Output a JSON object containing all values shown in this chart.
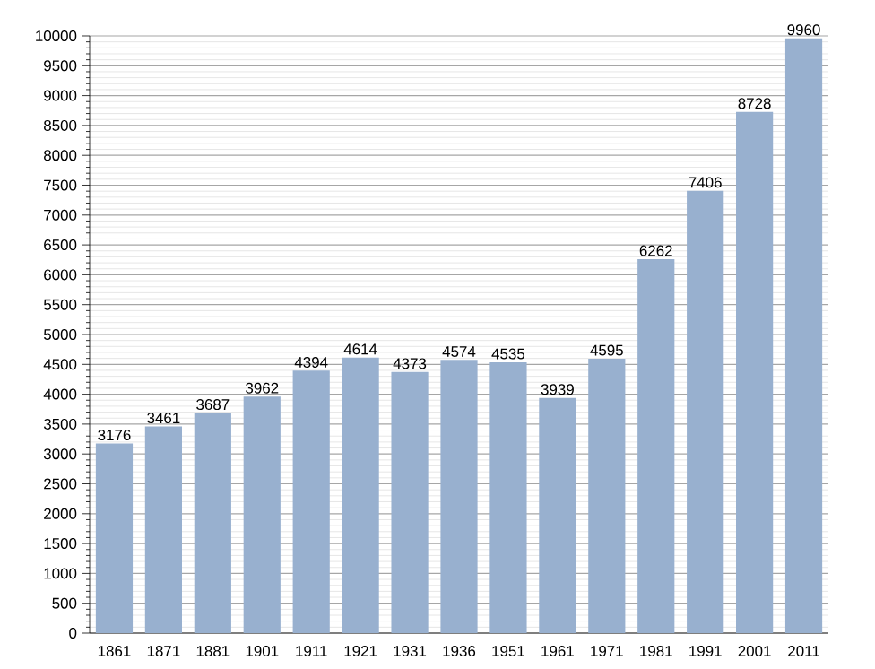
{
  "chart_data": {
    "type": "bar",
    "categories": [
      "1861",
      "1871",
      "1881",
      "1901",
      "1911",
      "1921",
      "1931",
      "1936",
      "1951",
      "1961",
      "1971",
      "1981",
      "1991",
      "2001",
      "2011"
    ],
    "values": [
      3176,
      3461,
      3687,
      3962,
      4394,
      4614,
      4373,
      4574,
      4535,
      3939,
      4595,
      6262,
      7406,
      8728,
      9960
    ],
    "color": "#98b0cf",
    "ylim": [
      0,
      10000
    ],
    "yticks": [
      0,
      500,
      1000,
      1500,
      2000,
      2500,
      3000,
      3500,
      4000,
      4500,
      5000,
      5500,
      6000,
      6500,
      7000,
      7500,
      8000,
      8500,
      9000,
      9500,
      10000
    ],
    "grid": "y",
    "data_labels": true
  }
}
